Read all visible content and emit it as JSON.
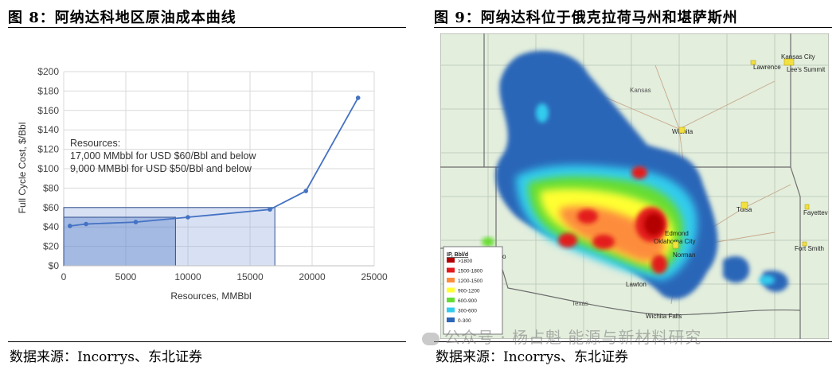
{
  "figures": [
    {
      "title": "图 8：阿纳达科地区原油成本曲线",
      "source": "数据来源：Incorrys、东北证券"
    },
    {
      "title": "图 9：阿纳达科位于俄克拉荷马州和堪萨斯州",
      "source": "数据来源：Incorrys、东北证券"
    }
  ],
  "chart_data": [
    {
      "type": "line",
      "title": "",
      "xlabel": "Resources, MMBbl",
      "ylabel": "Full Cycle Cost, $/Bbl",
      "xlim": [
        0,
        25000
      ],
      "ylim": [
        0,
        200
      ],
      "x_ticks": [
        "0",
        "5000",
        "10000",
        "15000",
        "20000",
        "25000"
      ],
      "y_ticks": [
        "$0",
        "$20",
        "$40",
        "$60",
        "$80",
        "$100",
        "$120",
        "$140",
        "$160",
        "$180",
        "$200"
      ],
      "grid": true,
      "series": [
        {
          "name": "",
          "color": "#4472c4",
          "x": [
            500,
            1800,
            5800,
            10000,
            16600,
            19500,
            23700
          ],
          "y": [
            41,
            43,
            45,
            50,
            58,
            77,
            173
          ]
        }
      ],
      "shaded_regions": [
        {
          "x": [
            0,
            9000
          ],
          "y": [
            0,
            50
          ],
          "color": "#4472c4"
        },
        {
          "x": [
            0,
            17000
          ],
          "y": [
            0,
            60
          ],
          "color": "#8faadc"
        }
      ],
      "annotation": [
        "Resources:",
        "17,000 MMbbl for USD $60/Bbl and below",
        "9,000 MMBbl for USD $50/Bbl and below"
      ]
    }
  ],
  "map": {
    "places": [
      "Kansas City",
      "Lawrence",
      "Lee's Summit",
      "Kansas",
      "Wichita",
      "Tulsa",
      "Fayettev",
      "Edmond",
      "Oklahoma City",
      "Norman",
      "Fort Smith",
      "Lawton",
      "Texas",
      "Wichita Falls",
      "rillo"
    ],
    "legend_title": "IP, Bbl/d",
    "legend": [
      {
        "label": ">1800",
        "color": "#b30000"
      },
      {
        "label": "1500-1800",
        "color": "#e31a1c"
      },
      {
        "label": "1200-1500",
        "color": "#fd8d3c"
      },
      {
        "label": "900-1200",
        "color": "#ffff33"
      },
      {
        "label": "600-900",
        "color": "#66dd33"
      },
      {
        "label": "300-600",
        "color": "#33ccee"
      },
      {
        "label": "0-300",
        "color": "#2b66b8"
      }
    ]
  },
  "watermark": "公众号 · 杨占魁 能源与新材料研究"
}
